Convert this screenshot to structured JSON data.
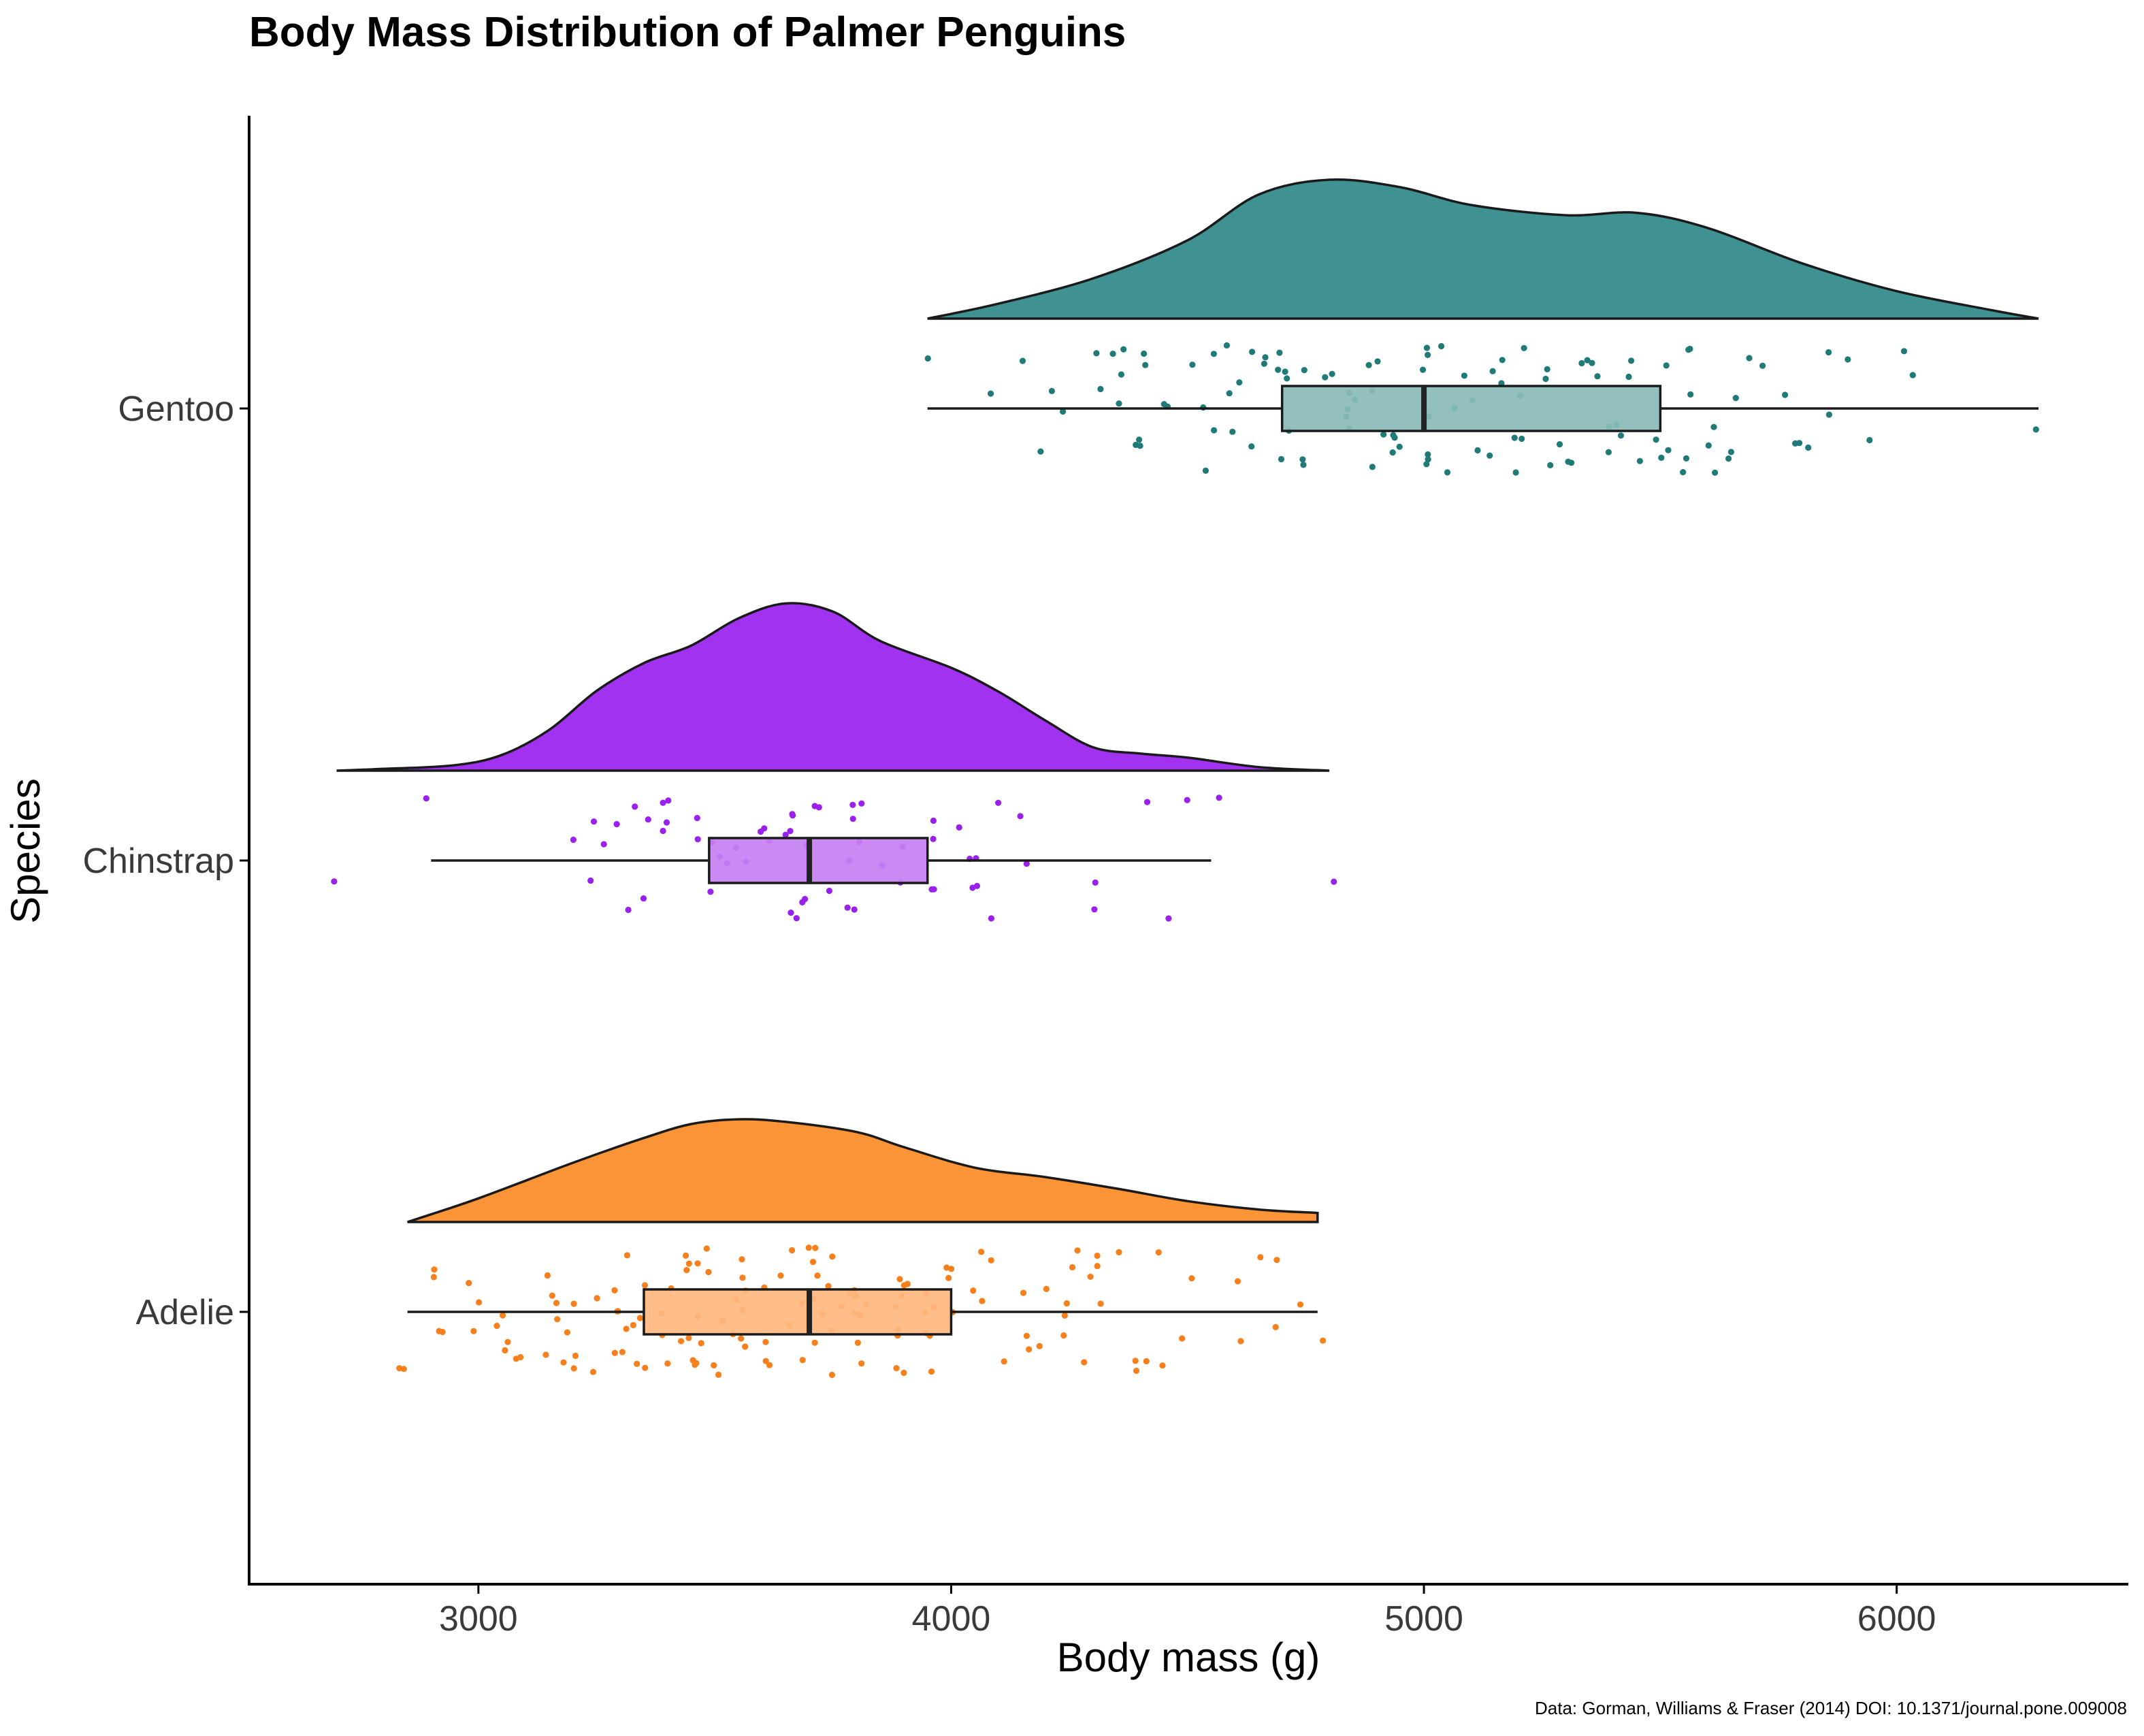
{
  "chart_data": {
    "type": "raincloud",
    "title": "Body Mass Distribution of Palmer Penguins",
    "xlabel": "Body mass (g)",
    "ylabel": "Species",
    "caption": "Data: Gorman, Williams & Fraser (2014) DOI: 10.1371/journal.pone.009008",
    "xlim": [
      2515,
      6490
    ],
    "x_ticks": [
      3000,
      4000,
      5000,
      6000
    ],
    "grid": false,
    "legend": "none",
    "categories": [
      "Gentoo",
      "Chinstrap",
      "Adelie"
    ],
    "series": [
      {
        "name": "Gentoo",
        "color": "#3f9291",
        "box_color": "#8abbb9",
        "point_color": "#1f7a78",
        "box": {
          "min": 3950,
          "q1": 4700,
          "median": 5000,
          "q3": 5500,
          "max": 6300
        },
        "density": [
          [
            3950,
            0.0
          ],
          [
            4100,
            0.082
          ],
          [
            4300,
            0.221
          ],
          [
            4500,
            0.431
          ],
          [
            4650,
            0.682
          ],
          [
            4800,
            0.764
          ],
          [
            4950,
            0.723
          ],
          [
            5100,
            0.625
          ],
          [
            5300,
            0.569
          ],
          [
            5450,
            0.582
          ],
          [
            5600,
            0.499
          ],
          [
            5800,
            0.304
          ],
          [
            6000,
            0.151
          ],
          [
            6200,
            0.047
          ],
          [
            6300,
            0.0
          ]
        ],
        "points": [
          4350,
          4800,
          5350,
          4850,
          4650,
          4400,
          5150,
          4950,
          5600,
          6300,
          4900,
          4750,
          5900,
          5050,
          4600,
          4700,
          5250,
          4150,
          5450,
          5300,
          4850,
          5800,
          4550,
          5200,
          5150,
          5000,
          4700,
          5050,
          6050,
          5850,
          4350,
          4250,
          5150,
          5550,
          4700,
          5400,
          5650,
          4200,
          5100,
          4800,
          4500,
          4850,
          5300,
          6000,
          4900,
          5700,
          4950,
          5500,
          4650,
          5000,
          5250,
          4400,
          5500,
          5950,
          5400,
          4750,
          5650,
          4450,
          5450,
          4600,
          4400,
          5550,
          4850,
          5850,
          5200,
          5400,
          4650,
          5000,
          5200,
          4700,
          5750,
          5700,
          5800,
          4400,
          4950,
          4900,
          5000,
          5100,
          5300,
          5500,
          4300,
          4550,
          5000,
          4350,
          4650,
          4100,
          5550,
          5350,
          5550,
          4900,
          4700,
          5250,
          5100,
          5400,
          4850,
          4750,
          4600,
          5000,
          4200,
          5550,
          4300,
          4600,
          5350,
          5500,
          4350,
          5200,
          5600,
          4400,
          3950,
          5050,
          4700,
          4950,
          4550,
          5650,
          5450,
          4550,
          5600,
          4450,
          5800,
          5000,
          5150,
          5200,
          5350,
          4900
        ]
      },
      {
        "name": "Chinstrap",
        "color": "#a032f0",
        "box_color": "#c680f2",
        "point_color": "#9a20ee",
        "box": {
          "min": 2900,
          "q1": 3488,
          "median": 3700,
          "q3": 3950,
          "max": 4550
        },
        "density": [
          [
            2700,
            0.0
          ],
          [
            2800,
            0.01
          ],
          [
            2950,
            0.03
          ],
          [
            3050,
            0.087
          ],
          [
            3150,
            0.225
          ],
          [
            3250,
            0.439
          ],
          [
            3350,
            0.592
          ],
          [
            3450,
            0.688
          ],
          [
            3550,
            0.838
          ],
          [
            3650,
            0.92
          ],
          [
            3750,
            0.875
          ],
          [
            3850,
            0.713
          ],
          [
            4000,
            0.566
          ],
          [
            4100,
            0.435
          ],
          [
            4200,
            0.275
          ],
          [
            4300,
            0.129
          ],
          [
            4400,
            0.094
          ],
          [
            4500,
            0.072
          ],
          [
            4650,
            0.02
          ],
          [
            4800,
            0.0
          ]
        ],
        "points": [
          3500,
          3900,
          3650,
          3525,
          3725,
          3950,
          3250,
          3750,
          4150,
          3700,
          3800,
          3775,
          3700,
          4050,
          3575,
          4050,
          3300,
          3700,
          3450,
          4400,
          3600,
          3400,
          2900,
          3800,
          3300,
          4150,
          3400,
          3800,
          3700,
          4550,
          3200,
          4300,
          3350,
          4100,
          3600,
          3900,
          3850,
          4800,
          2700,
          4500,
          3950,
          3650,
          3550,
          3500,
          3675,
          4450,
          3400,
          4300,
          3250,
          3675,
          3325,
          3950,
          3600,
          4050,
          3350,
          3450,
          3250,
          4050,
          3800,
          3525,
          3950,
          3650,
          3650,
          4000,
          3400,
          3775,
          4100,
          3775
        ]
      },
      {
        "name": "Adelie",
        "color": "#fb9337",
        "box_color": "#ffb77f",
        "point_color": "#f7801c",
        "box": {
          "min": 2850,
          "q1": 3350,
          "median": 3700,
          "q3": 4000,
          "max": 4775
        },
        "density": [
          [
            2850,
            0.0
          ],
          [
            3000,
            0.13
          ],
          [
            3200,
            0.326
          ],
          [
            3350,
            0.462
          ],
          [
            3450,
            0.539
          ],
          [
            3550,
            0.565
          ],
          [
            3650,
            0.551
          ],
          [
            3800,
            0.495
          ],
          [
            3900,
            0.412
          ],
          [
            4050,
            0.299
          ],
          [
            4200,
            0.247
          ],
          [
            4350,
            0.184
          ],
          [
            4500,
            0.115
          ],
          [
            4650,
            0.069
          ],
          [
            4775,
            0.05
          ]
        ],
        "points": [
          3750,
          3800,
          3250,
          3450,
          3650,
          3625,
          4675,
          3475,
          4250,
          3300,
          3700,
          3200,
          3800,
          4400,
          3700,
          3450,
          4500,
          3325,
          4200,
          3400,
          3600,
          3800,
          3950,
          3800,
          3800,
          3550,
          3200,
          3150,
          3950,
          3250,
          3900,
          3300,
          3900,
          3325,
          4150,
          3950,
          3550,
          3300,
          4650,
          3150,
          3900,
          3100,
          4400,
          3000,
          4600,
          3425,
          2975,
          3450,
          4150,
          3500,
          4300,
          3450,
          4050,
          2900,
          3700,
          3550,
          3800,
          2850,
          3750,
          3150,
          4400,
          3600,
          4050,
          2850,
          3950,
          3350,
          4100,
          3050,
          4450,
          3600,
          3900,
          3550,
          4150,
          3700,
          4250,
          3700,
          3900,
          3550,
          4000,
          3200,
          4700,
          3800,
          4200,
          3350,
          3550,
          3800,
          3500,
          3950,
          3600,
          3550,
          4300,
          3400,
          4450,
          3300,
          4300,
          3700,
          4350,
          2900,
          4100,
          3725,
          4725,
          3075,
          4250,
          2925,
          3550,
          3750,
          3900,
          3175,
          4775,
          3825,
          4600,
          3200,
          4275,
          3900,
          4075,
          2900,
          3775,
          3350,
          3325,
          3150,
          3500,
          3450,
          3875,
          3050,
          4000,
          3275,
          4300,
          3050,
          4000,
          3325,
          3500,
          3500,
          4475,
          3425,
          3900,
          3175,
          3975,
          3400,
          4250,
          3400,
          3475,
          3050,
          3725,
          3000,
          3650,
          4250,
          3475,
          3450,
          3750,
          3700,
          4000
        ]
      }
    ]
  }
}
